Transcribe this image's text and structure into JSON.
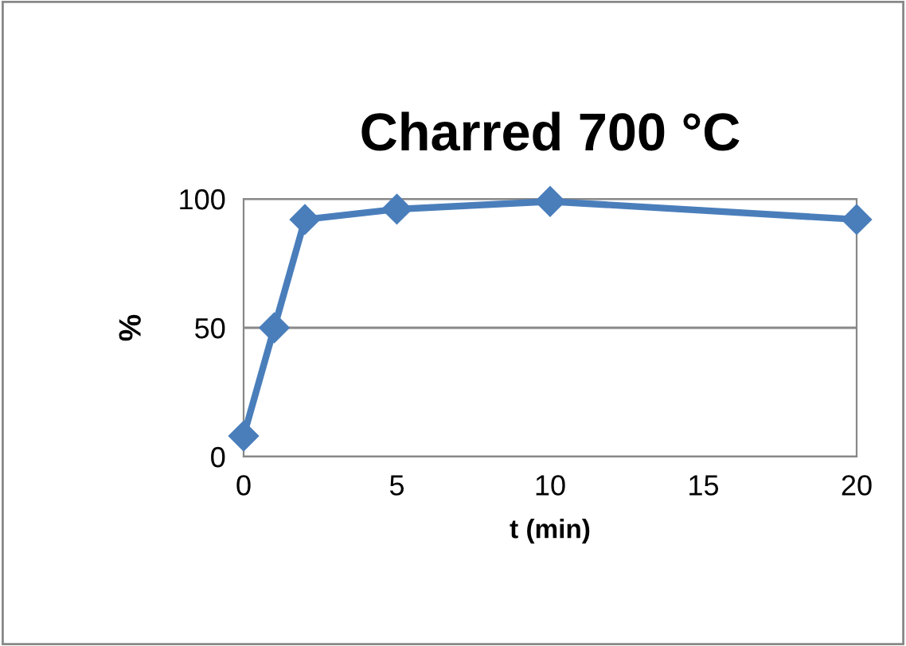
{
  "chart_data": {
    "type": "line",
    "title": "Charred 700 °C",
    "xlabel": "t (min)",
    "ylabel": "%",
    "x": [
      0,
      1,
      2,
      5,
      10,
      20
    ],
    "series": [
      {
        "color": "#4a7ebb",
        "values": [
          8,
          50,
          92,
          96,
          99,
          92
        ]
      }
    ],
    "xlim": [
      0,
      20
    ],
    "xticks": [
      0,
      5,
      10,
      15,
      20
    ],
    "ylim": [
      0,
      100
    ],
    "yticks": [
      0,
      50,
      100
    ],
    "grid": "y",
    "marker": "diamond",
    "line_style": "solid"
  }
}
